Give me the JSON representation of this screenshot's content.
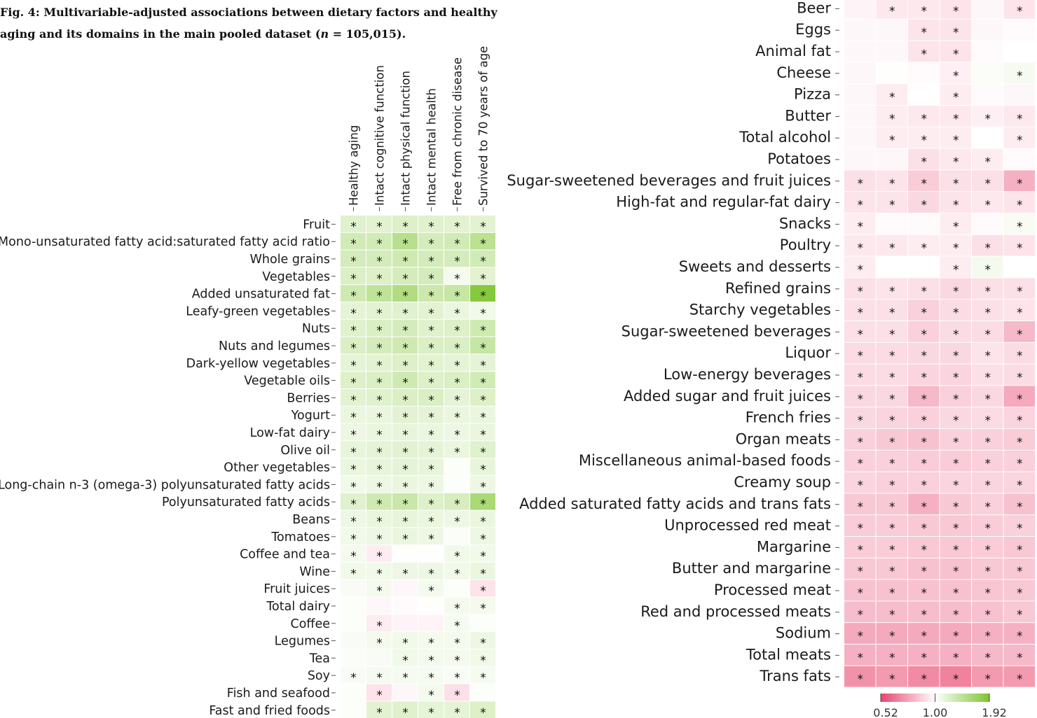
{
  "caption": {
    "prefix": "Fig. 4: Multivariable-adjusted associations between dietary factors and healthy aging and its domains in the main pooled dataset (",
    "n_symbol": "n",
    "suffix": " = 105,015)."
  },
  "chart_data": {
    "type": "heatmap",
    "columns": [
      "Healthy aging",
      "Intact cognitive function",
      "Intact physical function",
      "Intact mental health",
      "Free from chronic disease",
      "Survived to 70 years of age"
    ],
    "colorbar": {
      "min_label": "0.52",
      "mid_label": "1.00",
      "max_label": "1.92",
      "low_color": "#e8446e",
      "mid_color": "#ffffff",
      "high_color": "#7cc52d"
    },
    "left_panel": [
      {
        "label": "Fruit",
        "values": [
          1.22,
          1.2,
          1.24,
          1.22,
          1.2,
          1.2
        ],
        "stars": [
          1,
          1,
          1,
          1,
          1,
          1
        ]
      },
      {
        "label": "Mono-unsaturated fatty acid:saturated fatty acid ratio",
        "values": [
          1.32,
          1.32,
          1.5,
          1.3,
          1.32,
          1.48
        ],
        "stars": [
          1,
          1,
          1,
          1,
          1,
          1
        ]
      },
      {
        "label": "Whole grains",
        "values": [
          1.3,
          1.3,
          1.34,
          1.3,
          1.3,
          1.32
        ],
        "stars": [
          1,
          1,
          1,
          1,
          1,
          1
        ]
      },
      {
        "label": "Vegetables",
        "values": [
          1.26,
          1.24,
          1.3,
          1.3,
          1.08,
          1.2
        ],
        "stars": [
          1,
          1,
          1,
          1,
          1,
          1
        ]
      },
      {
        "label": "Added unsaturated fat",
        "values": [
          1.34,
          1.45,
          1.55,
          1.36,
          1.4,
          1.85
        ],
        "stars": [
          1,
          1,
          1,
          1,
          1,
          1
        ]
      },
      {
        "label": "Leafy-green vegetables",
        "values": [
          1.18,
          1.2,
          1.22,
          1.2,
          1.14,
          1.1
        ],
        "stars": [
          1,
          1,
          1,
          1,
          1,
          1
        ]
      },
      {
        "label": "Nuts",
        "values": [
          1.22,
          1.26,
          1.3,
          1.22,
          1.24,
          1.34
        ],
        "stars": [
          1,
          1,
          1,
          1,
          1,
          1
        ]
      },
      {
        "label": "Nuts and legumes",
        "values": [
          1.26,
          1.3,
          1.34,
          1.26,
          1.26,
          1.4
        ],
        "stars": [
          1,
          1,
          1,
          1,
          1,
          1
        ]
      },
      {
        "label": "Dark-yellow vegetables",
        "values": [
          1.18,
          1.2,
          1.24,
          1.2,
          1.18,
          1.18
        ],
        "stars": [
          1,
          1,
          1,
          1,
          1,
          1
        ]
      },
      {
        "label": "Vegetable oils",
        "values": [
          1.24,
          1.26,
          1.34,
          1.24,
          1.26,
          1.32
        ],
        "stars": [
          1,
          1,
          1,
          1,
          1,
          1
        ]
      },
      {
        "label": "Berries",
        "values": [
          1.2,
          1.22,
          1.26,
          1.26,
          1.18,
          1.24
        ],
        "stars": [
          1,
          1,
          1,
          1,
          1,
          1
        ]
      },
      {
        "label": "Yogurt",
        "values": [
          1.14,
          1.14,
          1.2,
          1.18,
          1.14,
          1.14
        ],
        "stars": [
          1,
          1,
          1,
          1,
          1,
          1
        ]
      },
      {
        "label": "Low-fat dairy",
        "values": [
          1.12,
          1.14,
          1.16,
          1.14,
          1.12,
          1.14
        ],
        "stars": [
          1,
          1,
          1,
          1,
          1,
          1
        ]
      },
      {
        "label": "Olive oil",
        "values": [
          1.16,
          1.18,
          1.2,
          1.18,
          1.14,
          1.22
        ],
        "stars": [
          1,
          1,
          1,
          1,
          1,
          1
        ]
      },
      {
        "label": "Other vegetables",
        "values": [
          1.14,
          1.16,
          1.18,
          1.16,
          1.02,
          1.16
        ],
        "stars": [
          1,
          1,
          1,
          1,
          0,
          1
        ]
      },
      {
        "label": "Long-chain n-3 (omega-3) polyunsaturated fatty acids",
        "values": [
          1.1,
          1.12,
          1.14,
          1.12,
          1.02,
          1.12
        ],
        "stars": [
          1,
          1,
          1,
          1,
          0,
          1
        ]
      },
      {
        "label": "Polyunsaturated fatty acids",
        "values": [
          1.22,
          1.34,
          1.38,
          1.24,
          1.28,
          1.6
        ],
        "stars": [
          1,
          1,
          1,
          1,
          1,
          1
        ]
      },
      {
        "label": "Beans",
        "values": [
          1.12,
          1.14,
          1.16,
          1.14,
          1.12,
          1.14
        ],
        "stars": [
          1,
          1,
          1,
          1,
          1,
          1
        ]
      },
      {
        "label": "Tomatoes",
        "values": [
          1.1,
          1.12,
          1.14,
          1.12,
          1.03,
          1.12
        ],
        "stars": [
          1,
          1,
          1,
          1,
          0,
          1
        ]
      },
      {
        "label": "Coffee and tea",
        "values": [
          1.08,
          0.95,
          1.01,
          1.01,
          1.1,
          1.1
        ],
        "stars": [
          1,
          1,
          0,
          0,
          1,
          1
        ]
      },
      {
        "label": "Wine",
        "values": [
          1.1,
          1.1,
          1.12,
          1.12,
          1.1,
          1.14
        ],
        "stars": [
          1,
          1,
          1,
          1,
          1,
          1
        ]
      },
      {
        "label": "Fruit juices",
        "values": [
          1.04,
          1.08,
          0.98,
          1.08,
          1.02,
          0.93
        ],
        "stars": [
          0,
          1,
          0,
          1,
          0,
          1
        ]
      },
      {
        "label": "Total dairy",
        "values": [
          1.02,
          0.98,
          0.99,
          1.01,
          1.08,
          1.08
        ],
        "stars": [
          0,
          0,
          0,
          0,
          1,
          1
        ]
      },
      {
        "label": "Coffee",
        "values": [
          1.02,
          0.95,
          0.97,
          0.97,
          1.06,
          1.02
        ],
        "stars": [
          0,
          1,
          0,
          0,
          1,
          0
        ]
      },
      {
        "label": "Legumes",
        "values": [
          1.04,
          1.08,
          1.1,
          1.08,
          1.08,
          1.12
        ],
        "stars": [
          0,
          1,
          1,
          1,
          1,
          1
        ]
      },
      {
        "label": "Tea",
        "values": [
          1.03,
          1.04,
          1.1,
          1.08,
          1.08,
          1.1
        ],
        "stars": [
          0,
          0,
          1,
          1,
          1,
          1
        ]
      },
      {
        "label": "Soy",
        "values": [
          1.04,
          1.06,
          1.06,
          1.06,
          1.04,
          1.06
        ],
        "stars": [
          1,
          1,
          1,
          1,
          1,
          1
        ]
      },
      {
        "label": "Fish and seafood",
        "values": [
          1.02,
          0.93,
          0.98,
          1.08,
          0.92,
          1.02
        ],
        "stars": [
          0,
          1,
          0,
          1,
          1,
          0
        ]
      },
      {
        "label": "Fast and fried foods",
        "values": [
          1.02,
          1.2,
          1.22,
          1.18,
          1.18,
          1.24
        ],
        "stars": [
          0,
          1,
          1,
          1,
          1,
          1
        ]
      }
    ],
    "right_panel": [
      {
        "label": "Beer",
        "values": [
          0.97,
          0.94,
          0.94,
          0.93,
          0.98,
          0.93
        ],
        "stars": [
          0,
          1,
          1,
          1,
          0,
          1
        ]
      },
      {
        "label": "Eggs",
        "values": [
          0.98,
          0.98,
          0.93,
          0.93,
          0.98,
          0.99
        ],
        "stars": [
          0,
          0,
          1,
          1,
          0,
          0
        ]
      },
      {
        "label": "Animal fat",
        "values": [
          0.98,
          0.98,
          0.93,
          0.93,
          0.99,
          1.0
        ],
        "stars": [
          0,
          0,
          1,
          1,
          0,
          0
        ]
      },
      {
        "label": "Cheese",
        "values": [
          0.98,
          1.01,
          0.99,
          0.96,
          1.03,
          1.06
        ],
        "stars": [
          0,
          0,
          0,
          1,
          0,
          1
        ]
      },
      {
        "label": "Pizza",
        "values": [
          0.98,
          0.95,
          1.0,
          0.95,
          0.99,
          0.98
        ],
        "stars": [
          0,
          1,
          0,
          1,
          0,
          0
        ]
      },
      {
        "label": "Butter",
        "values": [
          0.98,
          0.95,
          0.94,
          0.94,
          0.96,
          0.94
        ],
        "stars": [
          0,
          1,
          1,
          1,
          1,
          1
        ]
      },
      {
        "label": "Total alcohol",
        "values": [
          0.98,
          0.95,
          0.95,
          0.95,
          1.0,
          0.95
        ],
        "stars": [
          0,
          1,
          1,
          1,
          0,
          1
        ]
      },
      {
        "label": "Potatoes",
        "values": [
          0.98,
          0.98,
          0.92,
          0.94,
          0.95,
          0.99
        ],
        "stars": [
          0,
          0,
          1,
          1,
          1,
          0
        ]
      },
      {
        "label": "Sugar-sweetened beverages and fruit juices",
        "values": [
          0.92,
          0.93,
          0.87,
          0.92,
          0.92,
          0.8
        ],
        "stars": [
          1,
          1,
          1,
          1,
          1,
          1
        ]
      },
      {
        "label": "High-fat and regular-fat dairy",
        "values": [
          0.93,
          0.93,
          0.9,
          0.93,
          0.94,
          0.93
        ],
        "stars": [
          1,
          1,
          1,
          1,
          1,
          1
        ]
      },
      {
        "label": "Snacks",
        "values": [
          0.95,
          0.99,
          0.99,
          0.95,
          0.99,
          1.05
        ],
        "stars": [
          1,
          0,
          0,
          1,
          0,
          1
        ]
      },
      {
        "label": "Poultry",
        "values": [
          0.94,
          0.94,
          0.95,
          0.95,
          0.92,
          0.93
        ],
        "stars": [
          1,
          1,
          1,
          1,
          1,
          1
        ]
      },
      {
        "label": "Sweets and desserts",
        "values": [
          0.95,
          1.0,
          1.0,
          0.95,
          1.08,
          1.0
        ],
        "stars": [
          1,
          0,
          0,
          1,
          1,
          0
        ]
      },
      {
        "label": "Refined grains",
        "values": [
          0.92,
          0.93,
          0.92,
          0.9,
          0.92,
          0.92
        ],
        "stars": [
          1,
          1,
          1,
          1,
          1,
          1
        ]
      },
      {
        "label": "Starchy vegetables",
        "values": [
          0.92,
          0.92,
          0.88,
          0.91,
          0.92,
          0.93
        ],
        "stars": [
          1,
          1,
          1,
          1,
          1,
          1
        ]
      },
      {
        "label": "Sugar-sweetened beverages",
        "values": [
          0.92,
          0.92,
          0.88,
          0.91,
          0.91,
          0.82
        ],
        "stars": [
          1,
          1,
          1,
          1,
          1,
          1
        ]
      },
      {
        "label": "Liquor",
        "values": [
          0.91,
          0.91,
          0.9,
          0.9,
          0.93,
          0.91
        ],
        "stars": [
          1,
          1,
          1,
          1,
          1,
          1
        ]
      },
      {
        "label": "Low-energy beverages",
        "values": [
          0.91,
          0.91,
          0.89,
          0.89,
          0.92,
          0.91
        ],
        "stars": [
          1,
          1,
          1,
          1,
          1,
          1
        ]
      },
      {
        "label": "Added sugar and fruit juices",
        "values": [
          0.9,
          0.9,
          0.82,
          0.88,
          0.9,
          0.78
        ],
        "stars": [
          1,
          1,
          1,
          1,
          1,
          1
        ]
      },
      {
        "label": "French fries",
        "values": [
          0.9,
          0.89,
          0.88,
          0.9,
          0.91,
          0.89
        ],
        "stars": [
          1,
          1,
          1,
          1,
          1,
          1
        ]
      },
      {
        "label": "Organ meats",
        "values": [
          0.88,
          0.86,
          0.84,
          0.88,
          0.88,
          0.87
        ],
        "stars": [
          1,
          1,
          1,
          1,
          1,
          1
        ]
      },
      {
        "label": "Miscellaneous animal-based foods",
        "values": [
          0.88,
          0.88,
          0.87,
          0.87,
          0.88,
          0.88
        ],
        "stars": [
          1,
          1,
          1,
          1,
          1,
          1
        ]
      },
      {
        "label": "Creamy soup",
        "values": [
          0.89,
          0.88,
          0.88,
          0.89,
          0.89,
          0.89
        ],
        "stars": [
          1,
          1,
          1,
          1,
          1,
          1
        ]
      },
      {
        "label": "Added saturated fatty acids and trans fats",
        "values": [
          0.86,
          0.86,
          0.8,
          0.86,
          0.88,
          0.84
        ],
        "stars": [
          1,
          1,
          1,
          1,
          1,
          1
        ]
      },
      {
        "label": "Unprocessed red meat",
        "values": [
          0.87,
          0.87,
          0.86,
          0.86,
          0.87,
          0.88
        ],
        "stars": [
          1,
          1,
          1,
          1,
          1,
          1
        ]
      },
      {
        "label": "Margarine",
        "values": [
          0.87,
          0.87,
          0.86,
          0.86,
          0.87,
          0.86
        ],
        "stars": [
          1,
          1,
          1,
          1,
          1,
          1
        ]
      },
      {
        "label": "Butter and margarine",
        "values": [
          0.86,
          0.86,
          0.84,
          0.84,
          0.86,
          0.86
        ],
        "stars": [
          1,
          1,
          1,
          1,
          1,
          1
        ]
      },
      {
        "label": "Processed meat",
        "values": [
          0.84,
          0.84,
          0.84,
          0.84,
          0.85,
          0.86
        ],
        "stars": [
          1,
          1,
          1,
          1,
          1,
          1
        ]
      },
      {
        "label": "Red and processed meats",
        "values": [
          0.83,
          0.83,
          0.83,
          0.83,
          0.84,
          0.86
        ],
        "stars": [
          1,
          1,
          1,
          1,
          1,
          1
        ]
      },
      {
        "label": "Sodium",
        "values": [
          0.78,
          0.78,
          0.78,
          0.78,
          0.8,
          0.8
        ],
        "stars": [
          1,
          1,
          1,
          1,
          1,
          1
        ]
      },
      {
        "label": "Total meats",
        "values": [
          0.8,
          0.8,
          0.8,
          0.8,
          0.82,
          0.82
        ],
        "stars": [
          1,
          1,
          1,
          1,
          1,
          1
        ]
      },
      {
        "label": "Trans fats",
        "values": [
          0.72,
          0.74,
          0.7,
          0.68,
          0.74,
          0.74
        ],
        "stars": [
          1,
          1,
          1,
          1,
          1,
          1
        ]
      }
    ]
  }
}
